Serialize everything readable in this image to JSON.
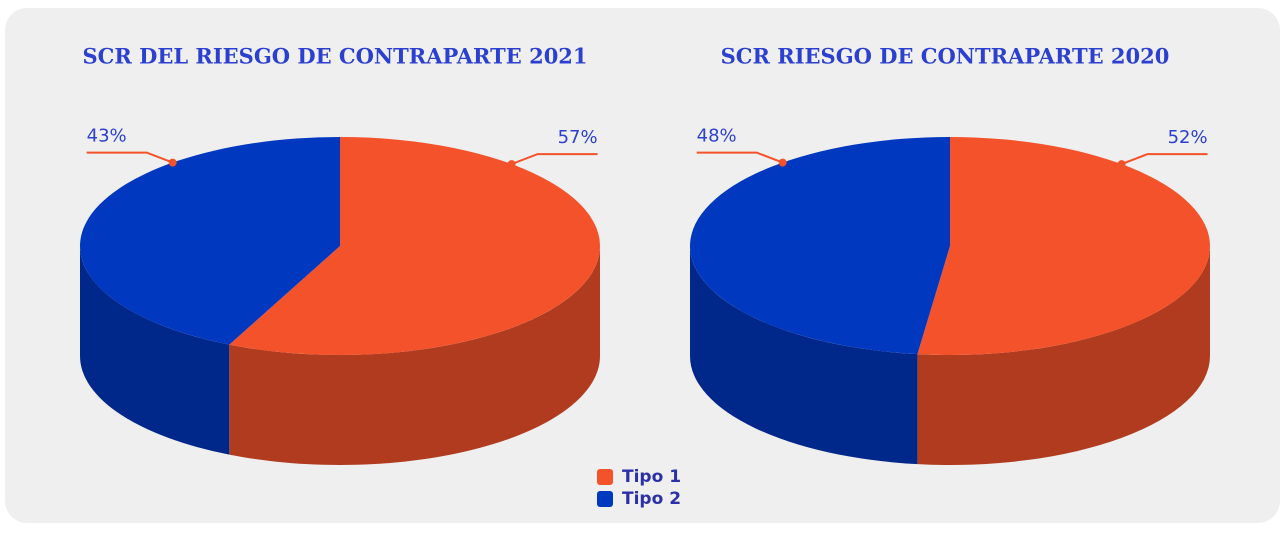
{
  "legend": {
    "items": [
      "Tipo 1",
      "Tipo 2"
    ],
    "colors": [
      "#f4522b",
      "#0038c0"
    ]
  },
  "chart_data": [
    {
      "type": "pie",
      "title": "SCR DEL RIESGO DE CONTRAPARTE 2021",
      "values": [
        57,
        43
      ],
      "value_labels": [
        "57%",
        "43%"
      ]
    },
    {
      "type": "pie",
      "title": "SCR RIESGO DE CONTRAPARTE 2020",
      "values": [
        52,
        48
      ],
      "value_labels": [
        "52%",
        "48%"
      ]
    }
  ]
}
